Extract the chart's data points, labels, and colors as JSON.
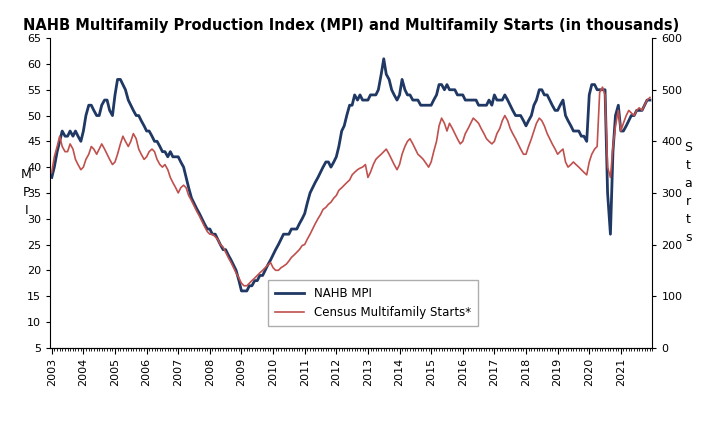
{
  "title": "NAHB Multifamily Production Index (MPI) and Multifamily Starts (in thousands)",
  "ylabel_left": "M\nP\nI",
  "ylabel_right": "S\nt\na\nr\nt\ns",
  "ylim_left": [
    5,
    65
  ],
  "ylim_right": [
    0,
    600
  ],
  "yticks_left": [
    5,
    10,
    15,
    20,
    25,
    30,
    35,
    40,
    45,
    50,
    55,
    60,
    65
  ],
  "yticks_right": [
    0,
    100,
    200,
    300,
    400,
    500,
    600
  ],
  "legend_labels": [
    "NAHB MPI",
    "Census Multifamily Starts*"
  ],
  "mpi_color": "#1F3864",
  "starts_color": "#C0504D",
  "background_color": "#FFFFFF",
  "mpi_linewidth": 2.0,
  "starts_linewidth": 1.2,
  "title_fontsize": 10.5,
  "mpi_x": [
    2003.0,
    2003.08,
    2003.17,
    2003.25,
    2003.33,
    2003.42,
    2003.5,
    2003.58,
    2003.67,
    2003.75,
    2003.83,
    2003.92,
    2004.0,
    2004.08,
    2004.17,
    2004.25,
    2004.33,
    2004.42,
    2004.5,
    2004.58,
    2004.67,
    2004.75,
    2004.83,
    2004.92,
    2005.0,
    2005.08,
    2005.17,
    2005.25,
    2005.33,
    2005.42,
    2005.5,
    2005.58,
    2005.67,
    2005.75,
    2005.83,
    2005.92,
    2006.0,
    2006.08,
    2006.17,
    2006.25,
    2006.33,
    2006.42,
    2006.5,
    2006.58,
    2006.67,
    2006.75,
    2006.83,
    2006.92,
    2007.0,
    2007.08,
    2007.17,
    2007.25,
    2007.33,
    2007.42,
    2007.5,
    2007.58,
    2007.67,
    2007.75,
    2007.83,
    2007.92,
    2008.0,
    2008.08,
    2008.17,
    2008.25,
    2008.33,
    2008.42,
    2008.5,
    2008.58,
    2008.67,
    2008.75,
    2008.83,
    2008.92,
    2009.0,
    2009.08,
    2009.17,
    2009.25,
    2009.33,
    2009.42,
    2009.5,
    2009.58,
    2009.67,
    2009.75,
    2009.83,
    2009.92,
    2010.0,
    2010.08,
    2010.17,
    2010.25,
    2010.33,
    2010.42,
    2010.5,
    2010.58,
    2010.67,
    2010.75,
    2010.83,
    2010.92,
    2011.0,
    2011.08,
    2011.17,
    2011.25,
    2011.33,
    2011.42,
    2011.5,
    2011.58,
    2011.67,
    2011.75,
    2011.83,
    2011.92,
    2012.0,
    2012.08,
    2012.17,
    2012.25,
    2012.33,
    2012.42,
    2012.5,
    2012.58,
    2012.67,
    2012.75,
    2012.83,
    2012.92,
    2013.0,
    2013.08,
    2013.17,
    2013.25,
    2013.33,
    2013.42,
    2013.5,
    2013.58,
    2013.67,
    2013.75,
    2013.83,
    2013.92,
    2014.0,
    2014.08,
    2014.17,
    2014.25,
    2014.33,
    2014.42,
    2014.5,
    2014.58,
    2014.67,
    2014.75,
    2014.83,
    2014.92,
    2015.0,
    2015.08,
    2015.17,
    2015.25,
    2015.33,
    2015.42,
    2015.5,
    2015.58,
    2015.67,
    2015.75,
    2015.83,
    2015.92,
    2016.0,
    2016.08,
    2016.17,
    2016.25,
    2016.33,
    2016.42,
    2016.5,
    2016.58,
    2016.67,
    2016.75,
    2016.83,
    2016.92,
    2017.0,
    2017.08,
    2017.17,
    2017.25,
    2017.33,
    2017.42,
    2017.5,
    2017.58,
    2017.67,
    2017.75,
    2017.83,
    2017.92,
    2018.0,
    2018.08,
    2018.17,
    2018.25,
    2018.33,
    2018.42,
    2018.5,
    2018.58,
    2018.67,
    2018.75,
    2018.83,
    2018.92,
    2019.0,
    2019.08,
    2019.17,
    2019.25,
    2019.33,
    2019.42,
    2019.5,
    2019.58,
    2019.67,
    2019.75,
    2019.83,
    2019.92,
    2020.0,
    2020.08,
    2020.17,
    2020.25,
    2020.33,
    2020.42,
    2020.5,
    2020.58,
    2020.67,
    2020.75,
    2020.83,
    2020.92,
    2021.0,
    2021.08,
    2021.17,
    2021.25,
    2021.33,
    2021.42,
    2021.5,
    2021.58,
    2021.67,
    2021.75,
    2021.83,
    2021.92
  ],
  "mpi_y": [
    38,
    40,
    43,
    45,
    47,
    46,
    46,
    47,
    46,
    47,
    46,
    45,
    47,
    50,
    52,
    52,
    51,
    50,
    50,
    52,
    53,
    53,
    51,
    50,
    54,
    57,
    57,
    56,
    55,
    53,
    52,
    51,
    50,
    50,
    49,
    48,
    47,
    47,
    46,
    45,
    45,
    44,
    43,
    43,
    42,
    43,
    42,
    42,
    42,
    41,
    40,
    38,
    36,
    34,
    33,
    32,
    31,
    30,
    29,
    28,
    28,
    27,
    27,
    26,
    25,
    24,
    24,
    23,
    22,
    21,
    20,
    18,
    16,
    16,
    16,
    17,
    17,
    18,
    18,
    19,
    19,
    20,
    21,
    22,
    23,
    24,
    25,
    26,
    27,
    27,
    27,
    28,
    28,
    28,
    29,
    30,
    31,
    33,
    35,
    36,
    37,
    38,
    39,
    40,
    41,
    41,
    40,
    41,
    42,
    44,
    47,
    48,
    50,
    52,
    52,
    54,
    53,
    54,
    53,
    53,
    53,
    54,
    54,
    54,
    55,
    58,
    61,
    58,
    57,
    55,
    54,
    53,
    54,
    57,
    55,
    54,
    54,
    53,
    53,
    53,
    52,
    52,
    52,
    52,
    52,
    53,
    54,
    56,
    56,
    55,
    56,
    55,
    55,
    55,
    54,
    54,
    54,
    53,
    53,
    53,
    53,
    53,
    52,
    52,
    52,
    52,
    53,
    52,
    54,
    53,
    53,
    53,
    54,
    53,
    52,
    51,
    50,
    50,
    50,
    49,
    48,
    49,
    50,
    52,
    53,
    55,
    55,
    54,
    54,
    53,
    52,
    51,
    51,
    52,
    53,
    50,
    49,
    48,
    47,
    47,
    47,
    46,
    46,
    45,
    54,
    56,
    56,
    55,
    55,
    55,
    55,
    35,
    27,
    43,
    50,
    52,
    47,
    47,
    48,
    49,
    50,
    50,
    51,
    51,
    51,
    52,
    53,
    53
  ],
  "starts_x": [
    2003.0,
    2003.08,
    2003.17,
    2003.25,
    2003.33,
    2003.42,
    2003.5,
    2003.58,
    2003.67,
    2003.75,
    2003.83,
    2003.92,
    2004.0,
    2004.08,
    2004.17,
    2004.25,
    2004.33,
    2004.42,
    2004.5,
    2004.58,
    2004.67,
    2004.75,
    2004.83,
    2004.92,
    2005.0,
    2005.08,
    2005.17,
    2005.25,
    2005.33,
    2005.42,
    2005.5,
    2005.58,
    2005.67,
    2005.75,
    2005.83,
    2005.92,
    2006.0,
    2006.08,
    2006.17,
    2006.25,
    2006.33,
    2006.42,
    2006.5,
    2006.58,
    2006.67,
    2006.75,
    2006.83,
    2006.92,
    2007.0,
    2007.08,
    2007.17,
    2007.25,
    2007.33,
    2007.42,
    2007.5,
    2007.58,
    2007.67,
    2007.75,
    2007.83,
    2007.92,
    2008.0,
    2008.08,
    2008.17,
    2008.25,
    2008.33,
    2008.42,
    2008.5,
    2008.58,
    2008.67,
    2008.75,
    2008.83,
    2008.92,
    2009.0,
    2009.08,
    2009.17,
    2009.25,
    2009.33,
    2009.42,
    2009.5,
    2009.58,
    2009.67,
    2009.75,
    2009.83,
    2009.92,
    2010.0,
    2010.08,
    2010.17,
    2010.25,
    2010.33,
    2010.42,
    2010.5,
    2010.58,
    2010.67,
    2010.75,
    2010.83,
    2010.92,
    2011.0,
    2011.08,
    2011.17,
    2011.25,
    2011.33,
    2011.42,
    2011.5,
    2011.58,
    2011.67,
    2011.75,
    2011.83,
    2011.92,
    2012.0,
    2012.08,
    2012.17,
    2012.25,
    2012.33,
    2012.42,
    2012.5,
    2012.58,
    2012.67,
    2012.75,
    2012.83,
    2012.92,
    2013.0,
    2013.08,
    2013.17,
    2013.25,
    2013.33,
    2013.42,
    2013.5,
    2013.58,
    2013.67,
    2013.75,
    2013.83,
    2013.92,
    2014.0,
    2014.08,
    2014.17,
    2014.25,
    2014.33,
    2014.42,
    2014.5,
    2014.58,
    2014.67,
    2014.75,
    2014.83,
    2014.92,
    2015.0,
    2015.08,
    2015.17,
    2015.25,
    2015.33,
    2015.42,
    2015.5,
    2015.58,
    2015.67,
    2015.75,
    2015.83,
    2015.92,
    2016.0,
    2016.08,
    2016.17,
    2016.25,
    2016.33,
    2016.42,
    2016.5,
    2016.58,
    2016.67,
    2016.75,
    2016.83,
    2016.92,
    2017.0,
    2017.08,
    2017.17,
    2017.25,
    2017.33,
    2017.42,
    2017.5,
    2017.58,
    2017.67,
    2017.75,
    2017.83,
    2017.92,
    2018.0,
    2018.08,
    2018.17,
    2018.25,
    2018.33,
    2018.42,
    2018.5,
    2018.58,
    2018.67,
    2018.75,
    2018.83,
    2018.92,
    2019.0,
    2019.08,
    2019.17,
    2019.25,
    2019.33,
    2019.42,
    2019.5,
    2019.58,
    2019.67,
    2019.75,
    2019.83,
    2019.92,
    2020.0,
    2020.08,
    2020.17,
    2020.25,
    2020.33,
    2020.42,
    2020.5,
    2020.58,
    2020.67,
    2020.75,
    2020.83,
    2020.92,
    2021.0,
    2021.08,
    2021.17,
    2021.25,
    2021.33,
    2021.42,
    2021.5,
    2021.58,
    2021.67,
    2021.75,
    2021.83,
    2021.92
  ],
  "starts_y": [
    340,
    370,
    390,
    410,
    390,
    380,
    380,
    395,
    385,
    365,
    355,
    345,
    350,
    365,
    375,
    390,
    385,
    375,
    385,
    395,
    385,
    375,
    365,
    355,
    360,
    375,
    395,
    410,
    400,
    390,
    400,
    415,
    405,
    385,
    375,
    365,
    370,
    380,
    385,
    380,
    365,
    355,
    350,
    355,
    345,
    330,
    320,
    310,
    300,
    310,
    315,
    310,
    295,
    285,
    275,
    265,
    255,
    245,
    235,
    225,
    220,
    220,
    215,
    210,
    200,
    195,
    185,
    175,
    165,
    155,
    145,
    135,
    125,
    120,
    120,
    125,
    130,
    135,
    140,
    145,
    150,
    155,
    160,
    165,
    155,
    150,
    150,
    155,
    158,
    162,
    168,
    175,
    180,
    185,
    190,
    198,
    200,
    210,
    220,
    230,
    240,
    250,
    258,
    268,
    272,
    278,
    282,
    290,
    295,
    305,
    310,
    315,
    320,
    325,
    335,
    340,
    345,
    348,
    350,
    355,
    330,
    340,
    355,
    365,
    370,
    375,
    380,
    385,
    375,
    365,
    355,
    345,
    355,
    375,
    390,
    400,
    405,
    395,
    385,
    375,
    370,
    365,
    358,
    350,
    360,
    380,
    400,
    430,
    445,
    435,
    420,
    435,
    425,
    415,
    405,
    395,
    400,
    415,
    425,
    435,
    445,
    440,
    435,
    425,
    415,
    405,
    400,
    395,
    400,
    415,
    425,
    440,
    450,
    440,
    425,
    415,
    405,
    395,
    385,
    375,
    375,
    390,
    405,
    420,
    435,
    445,
    440,
    430,
    415,
    405,
    395,
    385,
    375,
    380,
    385,
    360,
    350,
    355,
    360,
    355,
    350,
    345,
    340,
    335,
    360,
    375,
    385,
    390,
    495,
    505,
    490,
    350,
    330,
    390,
    430,
    460,
    420,
    435,
    450,
    460,
    455,
    450,
    460,
    465,
    460,
    470,
    480,
    485
  ],
  "xtick_labels": [
    "2003",
    "2004",
    "2005",
    "2006",
    "2007",
    "2008",
    "2009",
    "2010",
    "2011",
    "2012",
    "2013",
    "2014",
    "2015",
    "2016",
    "2017",
    "2018",
    "2019",
    "2020",
    "2021"
  ],
  "xtick_positions": [
    2003,
    2004,
    2005,
    2006,
    2007,
    2008,
    2009,
    2010,
    2011,
    2012,
    2013,
    2014,
    2015,
    2016,
    2017,
    2018,
    2019,
    2020,
    2021
  ]
}
